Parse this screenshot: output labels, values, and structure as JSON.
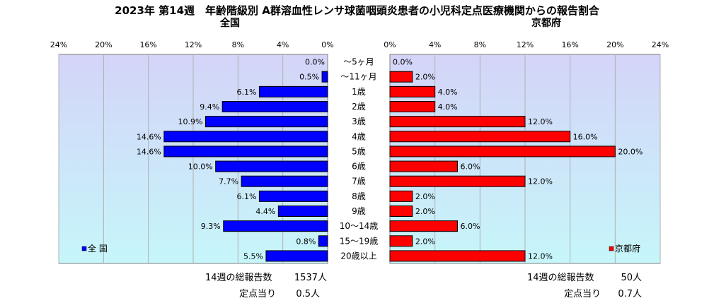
{
  "title": "2023年 第14週　年齢階級別 A群溶血性レンサ球菌咽頭炎患者の小児科定点医療機関からの報告割合",
  "categories": [
    "～5ヶ月",
    "～11ヶ月",
    "1歳",
    "2歳",
    "3歳",
    "4歳",
    "5歳",
    "6歳",
    "7歳",
    "8歳",
    "9歳",
    "10～14歳",
    "15～19歳",
    "20歳以上"
  ],
  "x_ticks": [
    "0%",
    "4%",
    "8%",
    "12%",
    "16%",
    "20%",
    "24%"
  ],
  "colors": {
    "national_bar": "#0000ff",
    "kyoto_bar": "#ff0000",
    "plot_bg_top": "#d4d4f8",
    "plot_bg_bottom": "#c6f6fa",
    "grid": "#b0b0b0"
  },
  "chart_data": [
    {
      "type": "bar",
      "orientation": "horizontal",
      "direction": "right-to-left",
      "title": "全国",
      "legend": "全 国",
      "legend_position": "bottom-left",
      "series": [
        {
          "name": "全 国",
          "values": [
            0.0,
            0.5,
            6.1,
            9.4,
            10.9,
            14.6,
            14.6,
            10.0,
            7.7,
            6.1,
            4.4,
            9.3,
            0.8,
            5.5
          ]
        }
      ],
      "data_labels": [
        "0.0%",
        "0.5%",
        "6.1%",
        "9.4%",
        "10.9%",
        "14.6%",
        "14.6%",
        "10.0%",
        "7.7%",
        "6.1%",
        "4.4%",
        "9.3%",
        "0.8%",
        "5.5%"
      ],
      "xlim": [
        0,
        24
      ],
      "grid": true
    },
    {
      "type": "bar",
      "orientation": "horizontal",
      "direction": "left-to-right",
      "title": "京都府",
      "legend": "京都府",
      "legend_position": "bottom-right",
      "series": [
        {
          "name": "京都府",
          "values": [
            0.0,
            2.0,
            4.0,
            4.0,
            12.0,
            16.0,
            20.0,
            6.0,
            12.0,
            2.0,
            2.0,
            6.0,
            2.0,
            12.0
          ]
        }
      ],
      "data_labels": [
        "0.0%",
        "2.0%",
        "4.0%",
        "4.0%",
        "12.0%",
        "16.0%",
        "20.0%",
        "6.0%",
        "12.0%",
        "2.0%",
        "2.0%",
        "6.0%",
        "2.0%",
        "12.0%"
      ],
      "xlim": [
        0,
        24
      ],
      "grid": true
    }
  ],
  "footer": {
    "national": {
      "total_label": "14週の総報告数",
      "total_value": "1537人",
      "per_site_label": "定点当り",
      "per_site_value": "0.5人"
    },
    "kyoto": {
      "total_label": "14週の総報告数",
      "total_value": "50人",
      "per_site_label": "定点当り",
      "per_site_value": "0.7人"
    }
  }
}
